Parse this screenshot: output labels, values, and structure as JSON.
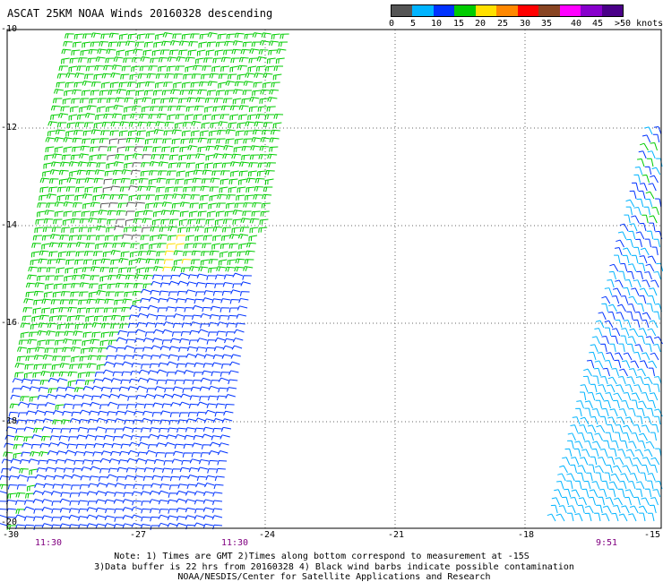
{
  "title": "ASCAT 25KM NOAA Winds 20160328 descending",
  "colorbar": {
    "labels": [
      "0",
      "5",
      "10",
      "15",
      "20",
      "25",
      "30",
      "35",
      "40",
      "45",
      ">50 knots"
    ],
    "colors": [
      "#555555",
      "#00b4ff",
      "#0033ff",
      "#00cc00",
      "#ffe000",
      "#ff8800",
      "#ff0000",
      "#884422",
      "#ff00ff",
      "#8800cc",
      "#4a0088"
    ]
  },
  "axes": {
    "x_ticks": [
      "-30",
      "-27",
      "-24",
      "-21",
      "-18",
      "-15"
    ],
    "y_ticks": [
      "-10",
      "-12",
      "-14",
      "-16",
      "-18",
      "-20"
    ]
  },
  "times": [
    "11:30",
    "11:30",
    "9:51"
  ],
  "notes": [
    "Note: 1) Times are GMT 2)Times along bottom correspond to measurement at -15S",
    "3)Data buffer is 22 hrs from 20160328 4) Black wind barbs indicate possible contamination",
    "NOAA/NESDIS/Center for Satellite Applications and Research"
  ],
  "swaths": [
    {
      "name": "western swath",
      "speed_range_knots": [
        10,
        25
      ]
    },
    {
      "name": "eastern swath",
      "speed_range_knots": [
        5,
        15
      ]
    }
  ]
}
